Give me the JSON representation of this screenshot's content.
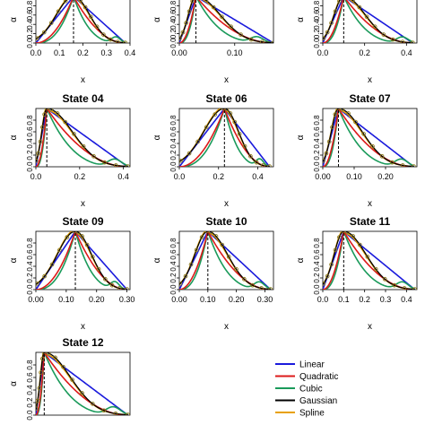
{
  "palette": {
    "Linear": "#1a1adc",
    "Quadratic": "#dc1a1a",
    "Cubic": "#1a9a5a",
    "Gaussian": "#000000",
    "Spline": "#e8a000",
    "points": "#8a7a20"
  },
  "legend": {
    "position": "bottom-right",
    "entries": [
      "Linear",
      "Quadratic",
      "Cubic",
      "Gaussian",
      "Spline"
    ]
  },
  "chart_data": [
    {
      "type": "line",
      "title": "",
      "xlabel": "x",
      "ylabel": "α",
      "xlim": [
        0,
        0.4
      ],
      "ylim": [
        0,
        1
      ],
      "xticks": [
        "0.0",
        "0.1",
        "0.2",
        "0.3",
        "0.4"
      ],
      "yticks": [
        "0.0",
        "0.2",
        "0.4",
        "0.6",
        "0.8"
      ],
      "peak": 0.16,
      "support": [
        0.0,
        0.38
      ],
      "cubic_tail": 0.34
    },
    {
      "type": "line",
      "title": "",
      "xlabel": "x",
      "ylabel": "α",
      "xlim": [
        0,
        0.17
      ],
      "ylim": [
        0,
        1
      ],
      "xticks": [
        "0.00",
        "0.10"
      ],
      "xtick_values": [
        0.0,
        0.1
      ],
      "yticks": [
        "0.0",
        "0.2",
        "0.4",
        "0.6",
        "0.8"
      ],
      "peak": 0.03,
      "support": [
        0.0,
        0.17
      ],
      "cubic_tail": 0.14
    },
    {
      "type": "line",
      "title": "",
      "xlabel": "x",
      "ylabel": "α",
      "xlim": [
        0,
        0.45
      ],
      "ylim": [
        0,
        1
      ],
      "xticks": [
        "0.0",
        "0.2",
        "0.4"
      ],
      "xtick_values": [
        0.0,
        0.2,
        0.4
      ],
      "yticks": [
        "0.0",
        "0.2",
        "0.4",
        "0.6",
        "0.8"
      ],
      "peak": 0.1,
      "support": [
        0.0,
        0.43
      ],
      "cubic_tail": 0.38
    },
    {
      "type": "line",
      "title": "State  04",
      "xlabel": "x",
      "ylabel": "α",
      "xlim": [
        0,
        0.43
      ],
      "ylim": [
        0,
        1
      ],
      "xticks": [
        "0.0",
        "0.2",
        "0.4"
      ],
      "xtick_values": [
        0.0,
        0.2,
        0.4
      ],
      "yticks": [
        "0.0",
        "0.2",
        "0.4",
        "0.6",
        "0.8"
      ],
      "peak": 0.05,
      "support": [
        0.0,
        0.42
      ],
      "cubic_tail": 0.36
    },
    {
      "type": "line",
      "title": "State  06",
      "xlabel": "x",
      "ylabel": "α",
      "xlim": [
        0,
        0.48
      ],
      "ylim": [
        0,
        1
      ],
      "xticks": [
        "0.0",
        "0.2",
        "0.4"
      ],
      "xtick_values": [
        0.0,
        0.2,
        0.4
      ],
      "yticks": [
        "0.0",
        "0.2",
        "0.4",
        "0.6",
        "0.8"
      ],
      "peak": 0.23,
      "support": [
        0.0,
        0.46
      ],
      "cubic_tail": 0.41
    },
    {
      "type": "line",
      "title": "State  07",
      "xlabel": "x",
      "ylabel": "α",
      "xlim": [
        0,
        0.3
      ],
      "ylim": [
        0,
        1
      ],
      "xticks": [
        "0.00",
        "0.10",
        "0.20"
      ],
      "xtick_values": [
        0.0,
        0.1,
        0.2
      ],
      "yticks": [
        "0.0",
        "0.2",
        "0.4",
        "0.6",
        "0.8"
      ],
      "peak": 0.05,
      "support": [
        0.0,
        0.29
      ],
      "cubic_tail": 0.25
    },
    {
      "type": "line",
      "title": "State  09",
      "xlabel": "x",
      "ylabel": "α",
      "xlim": [
        0,
        0.31
      ],
      "ylim": [
        0,
        1
      ],
      "xticks": [
        "0.00",
        "0.10",
        "0.20",
        "0.30"
      ],
      "xtick_values": [
        0.0,
        0.1,
        0.2,
        0.3
      ],
      "yticks": [
        "0.0",
        "0.2",
        "0.4",
        "0.6",
        "0.8"
      ],
      "peak": 0.13,
      "support": [
        0.0,
        0.3
      ],
      "cubic_tail": 0.26
    },
    {
      "type": "line",
      "title": "State  10",
      "xlabel": "x",
      "ylabel": "α",
      "xlim": [
        0,
        0.33
      ],
      "ylim": [
        0,
        1
      ],
      "xticks": [
        "0.00",
        "0.10",
        "0.20",
        "0.30"
      ],
      "xtick_values": [
        0.0,
        0.1,
        0.2,
        0.3
      ],
      "yticks": [
        "0.0",
        "0.2",
        "0.4",
        "0.6",
        "0.8"
      ],
      "peak": 0.1,
      "support": [
        0.0,
        0.32
      ],
      "cubic_tail": 0.28
    },
    {
      "type": "line",
      "title": "State  11",
      "xlabel": "x",
      "ylabel": "α",
      "xlim": [
        0,
        0.45
      ],
      "ylim": [
        0,
        1
      ],
      "xticks": [
        "0.0",
        "0.1",
        "0.2",
        "0.3",
        "0.4"
      ],
      "xtick_values": [
        0.0,
        0.1,
        0.2,
        0.3,
        0.4
      ],
      "yticks": [
        "0.0",
        "0.2",
        "0.4",
        "0.6",
        "0.8"
      ],
      "peak": 0.1,
      "support": [
        0.0,
        0.44
      ],
      "cubic_tail": 0.38
    },
    {
      "type": "line",
      "title": "State  12",
      "xlabel": "",
      "ylabel": "α",
      "xlim": [
        0,
        0.45
      ],
      "ylim": [
        0,
        1
      ],
      "xticks": [],
      "xtick_values": [],
      "yticks": [
        "0.0",
        "0.2",
        "0.4",
        "0.6",
        "0.8"
      ],
      "peak": 0.04,
      "support": [
        0.0,
        0.44
      ],
      "cubic_tail": 0.37
    }
  ]
}
